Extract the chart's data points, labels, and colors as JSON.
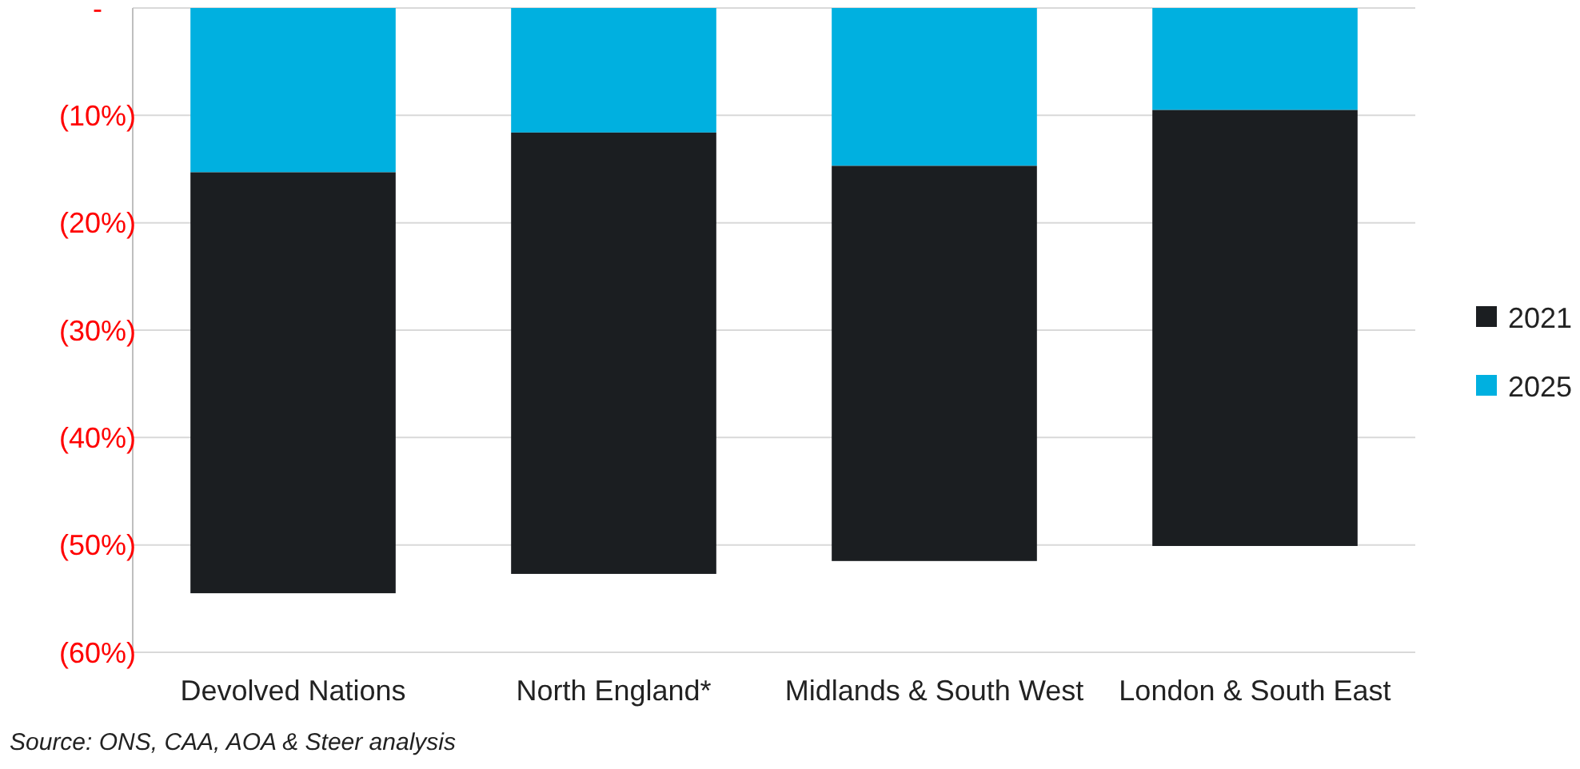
{
  "chart_data": {
    "type": "bar",
    "stacked": true,
    "categories": [
      "Devolved Nations",
      "North England*",
      "Midlands & South West",
      "London & South East"
    ],
    "series": [
      {
        "name": "2025",
        "color": "#00b0e0",
        "values": [
          -15.3,
          -11.6,
          -14.7,
          -9.5
        ]
      },
      {
        "name": "2021",
        "color": "#1b1e21",
        "values": [
          -39.2,
          -41.1,
          -36.8,
          -40.6
        ]
      }
    ],
    "ylim": [
      -60,
      0
    ],
    "yticks": [
      {
        "value": 0,
        "label": "-"
      },
      {
        "value": -10,
        "label": "(10%)"
      },
      {
        "value": -20,
        "label": "(20%)"
      },
      {
        "value": -30,
        "label": "(30%)"
      },
      {
        "value": -40,
        "label": "(40%)"
      },
      {
        "value": -50,
        "label": "(50%)"
      },
      {
        "value": -60,
        "label": "(60%)"
      }
    ],
    "grid": "y",
    "legend": "right",
    "annotations": [
      "Source: ONS, CAA, AOA & Steer analysis"
    ]
  }
}
